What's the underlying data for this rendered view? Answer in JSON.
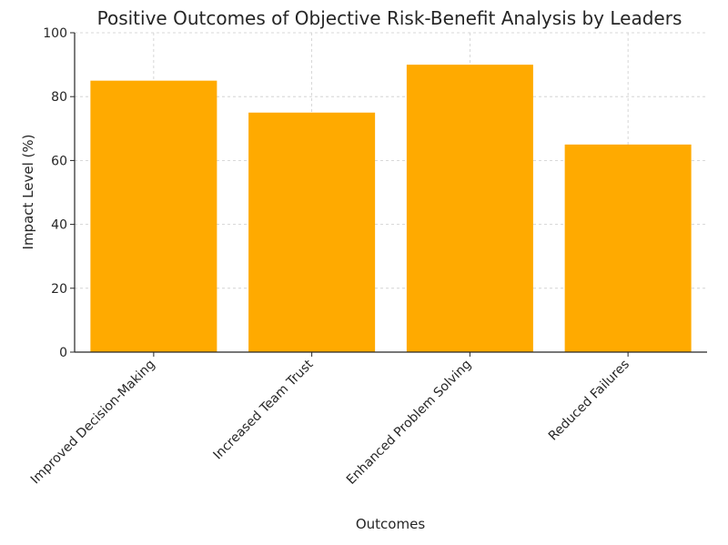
{
  "chart_data": {
    "type": "bar",
    "title": "Positive Outcomes of Objective Risk-Benefit Analysis by Leaders",
    "xlabel": "Outcomes",
    "ylabel": "Impact Level (%)",
    "categories": [
      "Improved Decision-Making",
      "Increased Team Trust",
      "Enhanced Problem Solving",
      "Reduced Failures"
    ],
    "values": [
      85,
      75,
      90,
      65
    ],
    "ylim": [
      0,
      100
    ],
    "yticks": [
      0,
      20,
      40,
      60,
      80,
      100
    ],
    "grid": true,
    "bar_color": "#FFAA00",
    "grid_color": "#cccccc"
  }
}
